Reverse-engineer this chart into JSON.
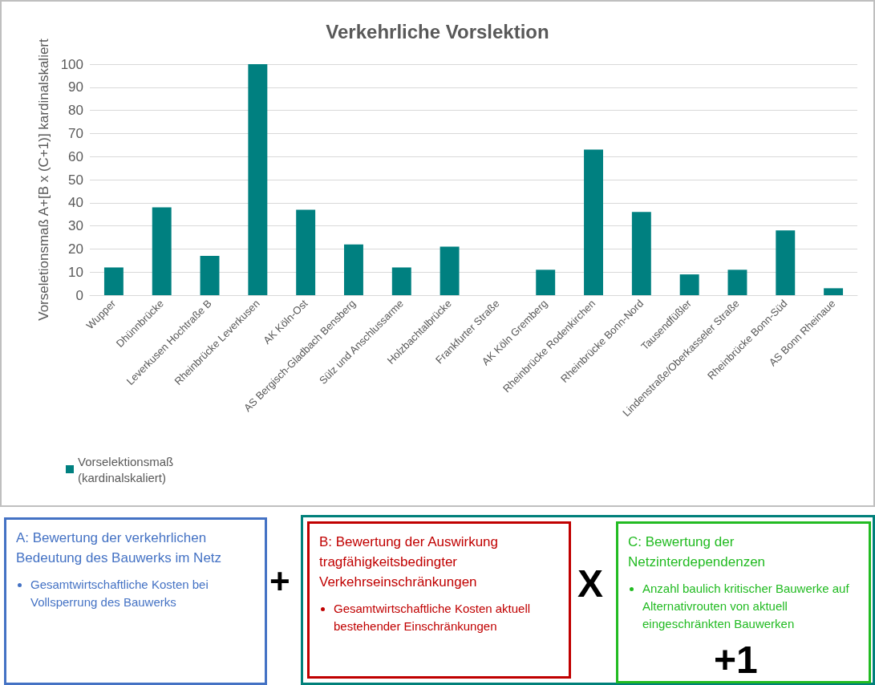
{
  "chart_data": {
    "type": "bar",
    "title": "Verkehrliche Vorslektion",
    "ylabel": "Vorseletionsmaß A+[B x (C+1)] kardinalskaliert",
    "categories": [
      "Wupper",
      "Dhünnbrücke",
      "Leverkusen Hochtraße B",
      "Rheinbrücke Leverkusen",
      "AK Köln-Ost",
      "AS Bergisch-Gladbach Bensberg",
      "Sülz und Anschlussarme",
      "Holzbachtalbrücke",
      "Frankfurter Straße",
      "AK Köln Gremberg",
      "Rheinbrücke Rodenkirchen",
      "Rheinbrücke Bonn-Nord",
      "Tausendfüßler",
      "Lindenstraße/Oberkasseler Straße",
      "Rheinbrücke Bonn-Süd",
      "AS Bonn Rheinaue"
    ],
    "series": [
      {
        "name": "Vorselektionsmaß (kardinalskaliert)",
        "color": "#008080",
        "values": [
          12,
          38,
          17,
          100,
          37,
          22,
          12,
          21,
          0,
          11,
          63,
          36,
          9,
          11,
          28,
          3
        ]
      }
    ],
    "ylim": [
      0,
      100
    ],
    "yticks": [
      0,
      10,
      20,
      30,
      40,
      50,
      60,
      70,
      80,
      90,
      100
    ],
    "grid": "y",
    "legend": "bottom left",
    "annotations": [
      "A: Bewertung der verkehrlichen Bedeutung des Bauwerks im Netz",
      "Gesamtwirtschaftliche Kosten bei Vollsperrung des Bauwerks",
      "+",
      "B: Bewertung der Auswirkung tragfähigkeitsbedingter Verkehrseinschränkungen",
      "Gesamtwirtschaftliche Kosten aktuell bestehender Einschränkungen",
      "X",
      "C: Bewertung der Netzinterdependenzen",
      "Anzahl baulich kritischer Bauwerke auf Alternativrouten von aktuell eingeschränkten Bauwerken",
      "+1"
    ]
  }
}
